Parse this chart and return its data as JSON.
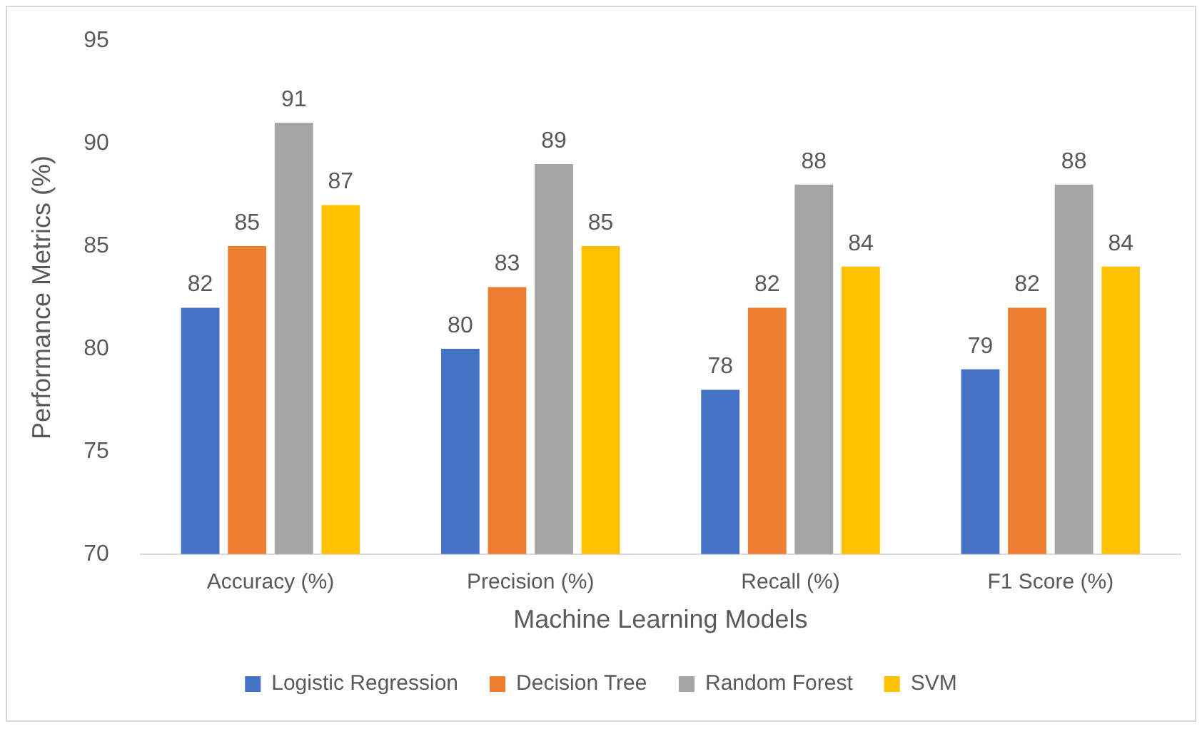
{
  "chart_data": {
    "type": "bar",
    "xlabel": "Machine Learning Models",
    "ylabel": "Performance Metrics (%)",
    "categories": [
      "Accuracy (%)",
      "Precision (%)",
      "Recall (%)",
      "F1 Score (%)"
    ],
    "series": [
      {
        "name": "Logistic Regression",
        "color": "#4472c4",
        "values": [
          82,
          80,
          78,
          79
        ]
      },
      {
        "name": "Decision Tree",
        "color": "#ed7d31",
        "values": [
          85,
          83,
          82,
          82
        ]
      },
      {
        "name": "Random Forest",
        "color": "#a5a5a5",
        "values": [
          91,
          89,
          88,
          88
        ]
      },
      {
        "name": "SVM",
        "color": "#ffc000",
        "values": [
          87,
          85,
          84,
          84
        ]
      }
    ],
    "ylim": [
      70,
      95
    ],
    "yticks": [
      70,
      75,
      80,
      85,
      90,
      95
    ],
    "data_labels": true,
    "legend": "bottom"
  }
}
